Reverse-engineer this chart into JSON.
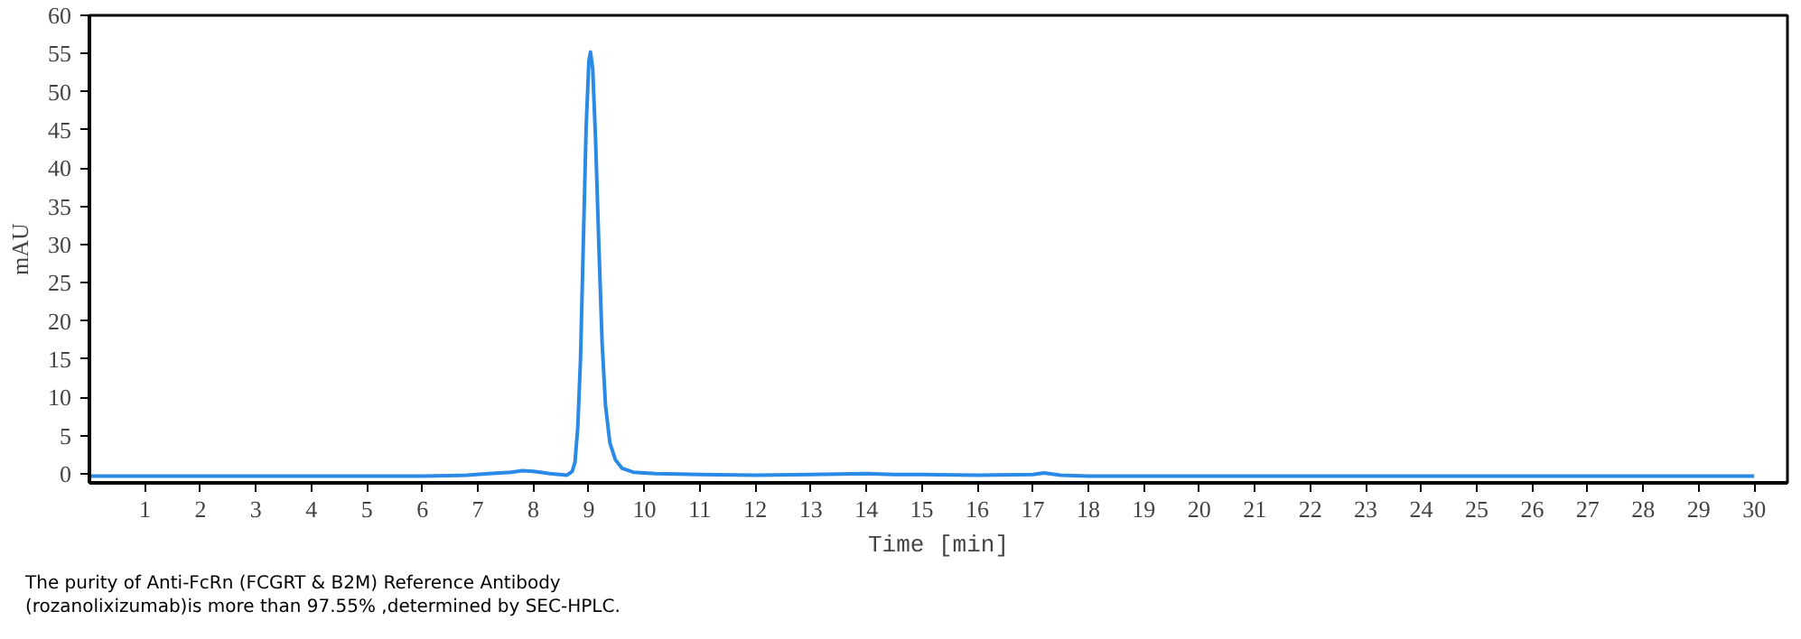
{
  "chart_data": {
    "type": "line",
    "xlabel": "Time [min]",
    "ylabel": "mAU",
    "series": [
      {
        "color": "#2b8ae6",
        "x": [
          0,
          2,
          4,
          6,
          6.8,
          7.2,
          7.6,
          7.8,
          8.0,
          8.3,
          8.6,
          8.7,
          8.75,
          8.8,
          8.85,
          8.9,
          8.95,
          9.0,
          9.03,
          9.07,
          9.12,
          9.18,
          9.24,
          9.3,
          9.38,
          9.48,
          9.6,
          9.8,
          10.2,
          11,
          12,
          13,
          14,
          14.5,
          15,
          16,
          17,
          17.2,
          17.5,
          18,
          20,
          22,
          24,
          26,
          28,
          30
        ],
        "values": [
          -0.3,
          -0.3,
          -0.3,
          -0.3,
          -0.2,
          0,
          0.2,
          0.4,
          0.3,
          0,
          -0.2,
          0.3,
          1.5,
          6,
          15,
          30,
          45,
          54,
          55.2,
          53,
          44,
          30,
          17,
          9,
          4,
          1.8,
          0.7,
          0.2,
          0,
          -0.1,
          -0.2,
          -0.1,
          0,
          -0.1,
          -0.1,
          -0.2,
          -0.1,
          0.1,
          -0.2,
          -0.3,
          -0.3,
          -0.3,
          -0.3,
          -0.3,
          -0.3,
          -0.3
        ]
      }
    ],
    "xlim": [
      0,
      30.6
    ],
    "ylim": [
      -1.2,
      60
    ],
    "xticks": [
      1,
      2,
      3,
      4,
      5,
      6,
      7,
      8,
      9,
      10,
      11,
      12,
      13,
      14,
      15,
      16,
      17,
      18,
      19,
      20,
      21,
      22,
      23,
      24,
      25,
      26,
      27,
      28,
      29,
      30
    ],
    "yticks": [
      0,
      5,
      10,
      15,
      20,
      25,
      30,
      35,
      40,
      45,
      50,
      55,
      60
    ],
    "grid": false,
    "marker": "none",
    "line_style": "solid",
    "annotations": [
      "The purity of Anti-FcRn (FCGRT & B2M) Reference Antibody\n(rozanolixizumab)is more than 97.55% ,determined by SEC-HPLC."
    ]
  }
}
